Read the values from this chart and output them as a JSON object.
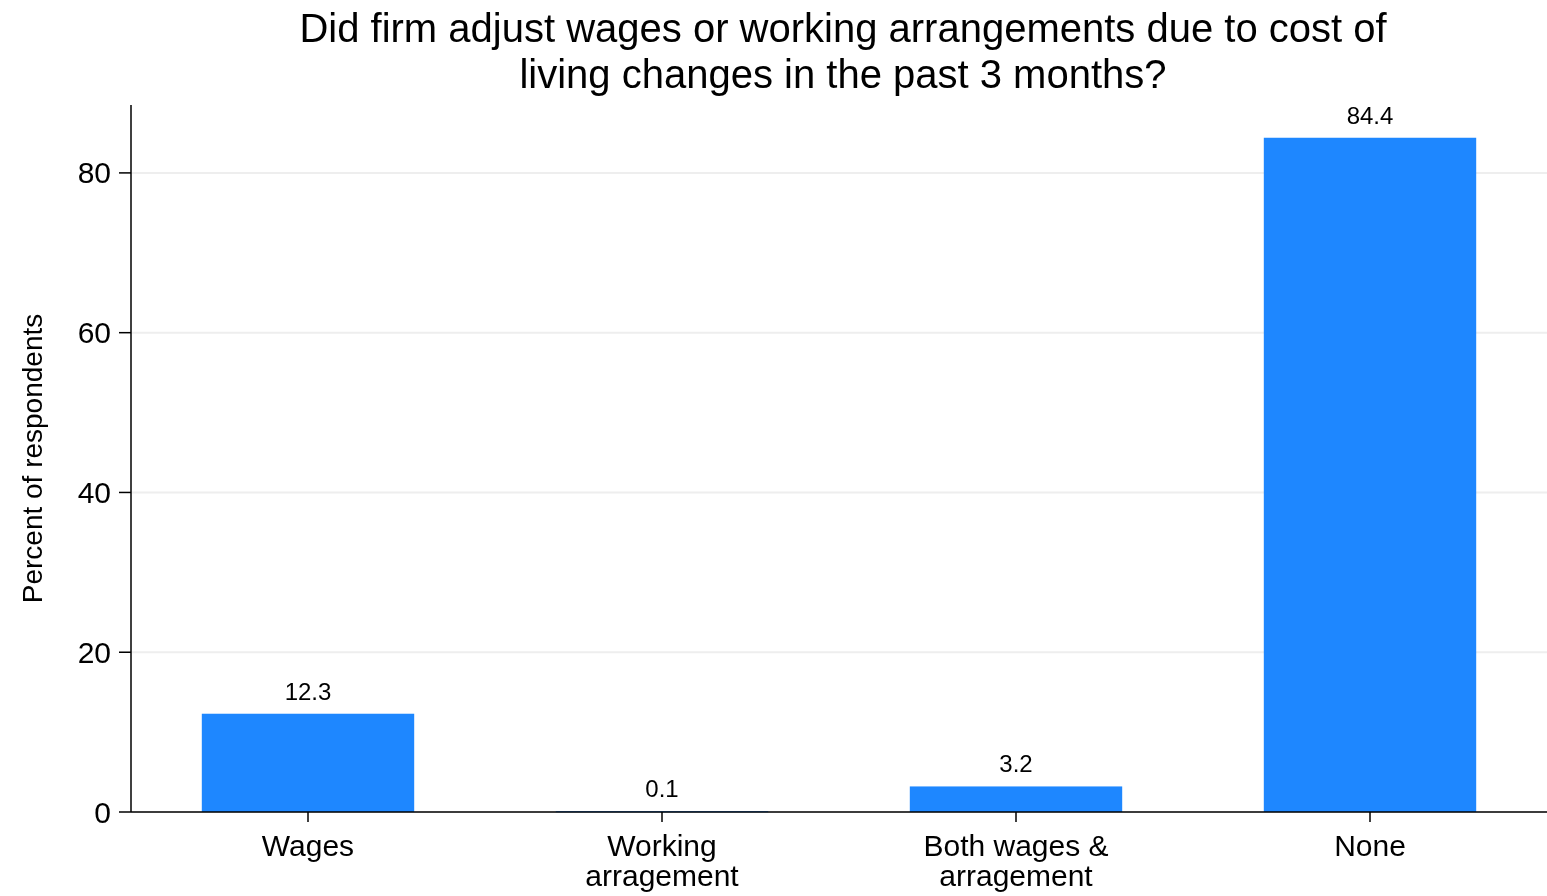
{
  "chart_data": {
    "type": "bar",
    "title": "Did firm adjust wages or working arrangements due to cost of living changes in the past 3 months?",
    "categories": [
      "Wages",
      "Working arragement",
      "Both wages & arragement",
      "None"
    ],
    "values": [
      12.3,
      0.1,
      3.2,
      84.4
    ],
    "color": "#1e87ff",
    "ylabel": "Percent of respondents",
    "ylim": [
      0,
      88.5
    ],
    "yticks": [
      0,
      20,
      40,
      60,
      80
    ],
    "grid": "y",
    "data_labels": true
  }
}
